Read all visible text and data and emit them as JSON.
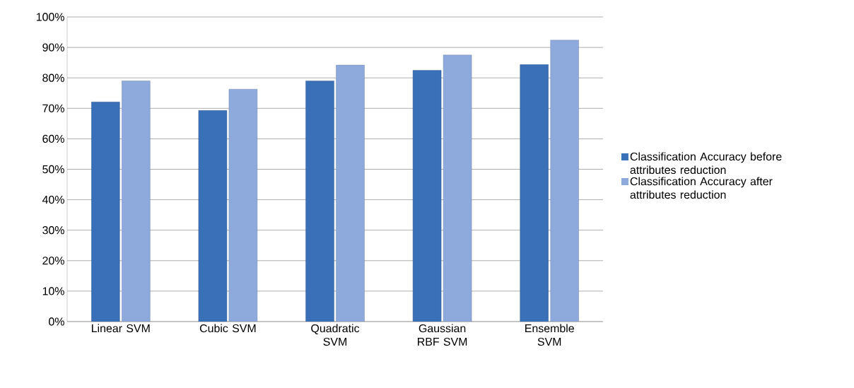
{
  "chart_data": {
    "type": "bar",
    "categories": [
      "Linear SVM",
      "Cubic SVM",
      "Quadratic SVM",
      "Gaussian RBF SVM",
      "Ensemble SVM"
    ],
    "series": [
      {
        "name": "Classification Accuracy before attributes reduction",
        "color": "#3a70b8",
        "values": [
          72.1,
          69.3,
          79.0,
          82.5,
          84.4
        ]
      },
      {
        "name": "Classification Accuracy after attributes reduction",
        "color": "#8eaadc",
        "values": [
          79.0,
          76.3,
          84.2,
          87.5,
          92.4
        ]
      }
    ],
    "ylim": [
      0,
      100
    ],
    "yticks": [
      {
        "value": 0,
        "label": "0%"
      },
      {
        "value": 10,
        "label": "10%"
      },
      {
        "value": 20,
        "label": "20%"
      },
      {
        "value": 30,
        "label": "30%"
      },
      {
        "value": 40,
        "label": "40%"
      },
      {
        "value": 50,
        "label": "50%"
      },
      {
        "value": 60,
        "label": "60%"
      },
      {
        "value": 70,
        "label": "70%"
      },
      {
        "value": 80,
        "label": "80%"
      },
      {
        "value": 90,
        "label": "90%"
      },
      {
        "value": 100,
        "label": "100%"
      }
    ],
    "grid": "y",
    "legend": "right"
  }
}
